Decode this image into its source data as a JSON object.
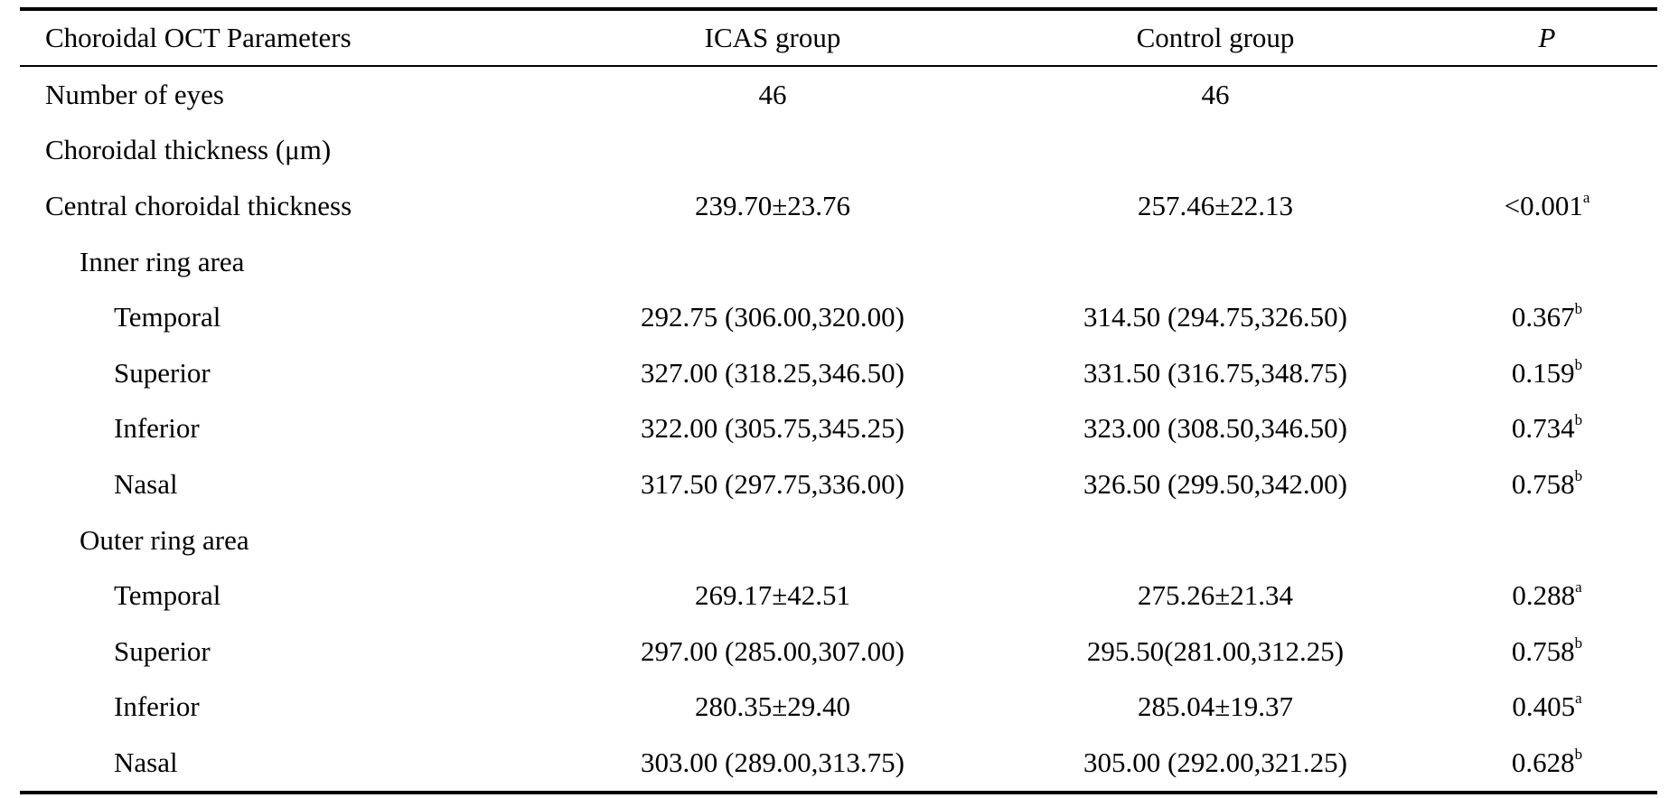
{
  "table": {
    "headers": [
      "Choroidal OCT Parameters",
      "ICAS group",
      "Control group",
      "P"
    ],
    "rows": [
      {
        "label": "Number of eyes",
        "icas": "46",
        "control": "46",
        "p": "",
        "p_sup": ""
      },
      {
        "label": "Choroidal thickness (μm)",
        "icas": "",
        "control": "",
        "p": "",
        "p_sup": ""
      },
      {
        "label": "Central choroidal thickness",
        "icas": "239.70±23.76",
        "control": "257.46±22.13",
        "p": "<0.001",
        "p_sup": "a"
      },
      {
        "label": "Inner ring area",
        "icas": "",
        "control": "",
        "p": "",
        "p_sup": ""
      },
      {
        "label": "Temporal",
        "icas": "292.75 (306.00,320.00)",
        "control": "314.50 (294.75,326.50)",
        "p": "0.367",
        "p_sup": "b"
      },
      {
        "label": "Superior",
        "icas": "327.00 (318.25,346.50)",
        "control": "331.50 (316.75,348.75)",
        "p": "0.159",
        "p_sup": "b"
      },
      {
        "label": "Inferior",
        "icas": "322.00 (305.75,345.25)",
        "control": "323.00 (308.50,346.50)",
        "p": "0.734",
        "p_sup": "b"
      },
      {
        "label": "Nasal",
        "icas": "317.50 (297.75,336.00)",
        "control": "326.50 (299.50,342.00)",
        "p": "0.758",
        "p_sup": "b"
      },
      {
        "label": "Outer ring area",
        "icas": "",
        "control": "",
        "p": "",
        "p_sup": ""
      },
      {
        "label": "Temporal",
        "icas": "269.17±42.51",
        "control": "275.26±21.34",
        "p": "0.288",
        "p_sup": "a"
      },
      {
        "label": "Superior",
        "icas": "297.00 (285.00,307.00)",
        "control": "295.50(281.00,312.25)",
        "p": "0.758",
        "p_sup": "b"
      },
      {
        "label": "Inferior",
        "icas": "280.35±29.40",
        "control": "285.04±19.37",
        "p": "0.405",
        "p_sup": "a"
      },
      {
        "label": "Nasal",
        "icas": "303.00 (289.00,313.75)",
        "control": "305.00 (292.00,321.25)",
        "p": "0.628",
        "p_sup": "b"
      }
    ]
  }
}
